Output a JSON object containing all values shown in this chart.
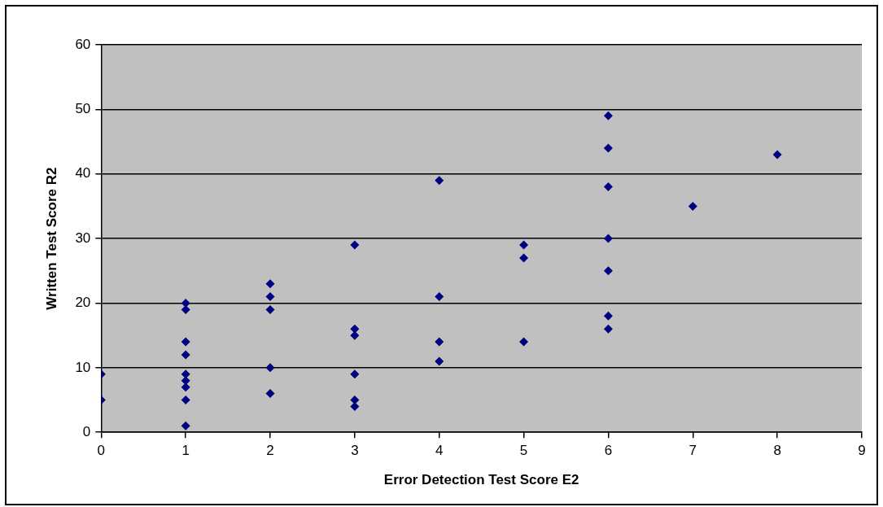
{
  "chart_data": {
    "type": "scatter",
    "xlabel": "Error Detection Test Score E2",
    "ylabel": "Written Test Score R2",
    "series": [
      {
        "color": "#000080",
        "x": [
          0,
          0,
          1,
          1,
          1,
          1,
          1,
          1,
          1,
          1,
          1,
          2,
          2,
          2,
          2,
          2,
          3,
          3,
          3,
          3,
          3,
          3,
          4,
          4,
          4,
          4,
          5,
          5,
          5,
          6,
          6,
          6,
          6,
          6,
          6,
          6,
          7,
          8
        ],
        "values": [
          9,
          5,
          20,
          19,
          14,
          12,
          9,
          8,
          7,
          5,
          1,
          23,
          21,
          19,
          10,
          6,
          29,
          16,
          15,
          9,
          5,
          4,
          39,
          21,
          14,
          11,
          29,
          27,
          14,
          49,
          44,
          38,
          30,
          25,
          18,
          16,
          35,
          43
        ]
      }
    ],
    "xlim": [
      0,
      9
    ],
    "xticks": [
      0,
      1,
      2,
      3,
      4,
      5,
      6,
      7,
      8,
      9
    ],
    "ylim": [
      0,
      60
    ],
    "yticks": [
      0,
      10,
      20,
      30,
      40,
      50,
      60
    ],
    "grid": "y",
    "legend": false,
    "marker": "diamond"
  }
}
